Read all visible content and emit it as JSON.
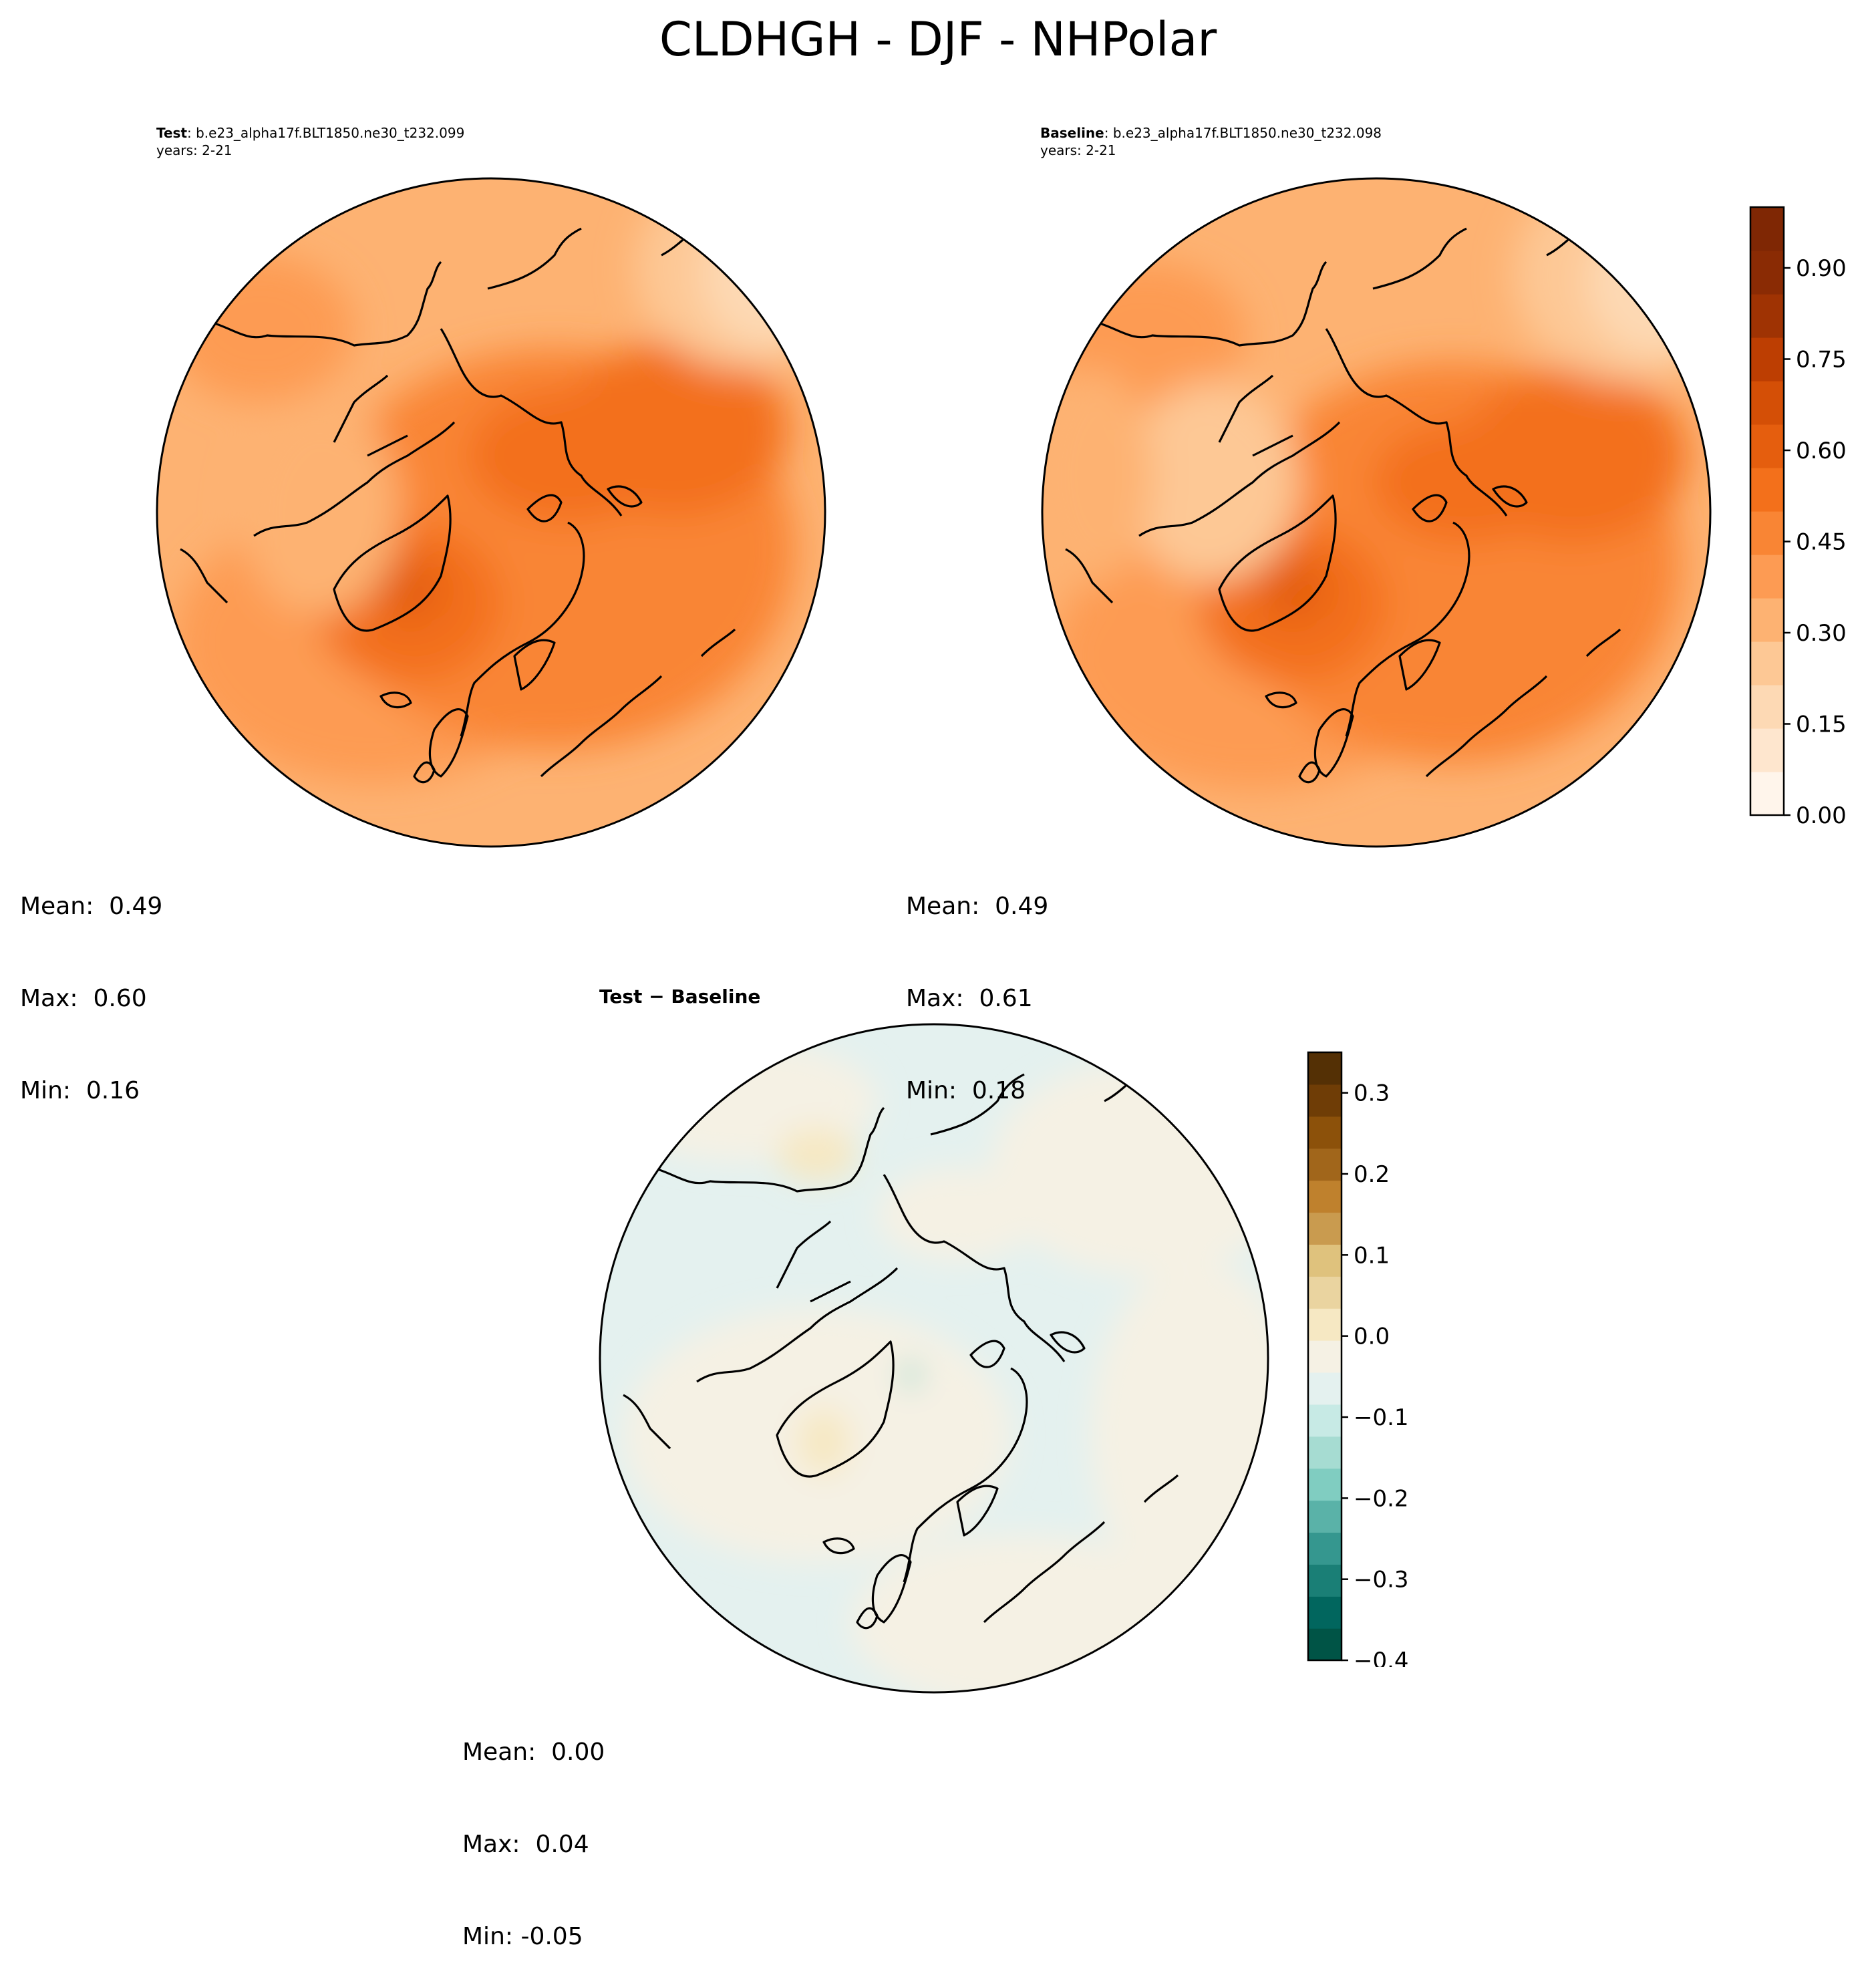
{
  "figure": {
    "title": "CLDHGH - DJF - NHPolar"
  },
  "panels": [
    {
      "id": "test",
      "label": "Test",
      "case": ": b.e23_alpha17f.BLT1850.ne30_t232.099",
      "years": "years: 2-21",
      "stats": {
        "mean": "Mean:  0.49",
        "max": "Max:  0.60",
        "min": "Min:  0.16"
      }
    },
    {
      "id": "baseline",
      "label": "Baseline",
      "case": ": b.e23_alpha17f.BLT1850.ne30_t232.098",
      "years": "years: 2-21",
      "stats": {
        "mean": "Mean:  0.49",
        "max": "Max:  0.61",
        "min": "Min:  0.18"
      }
    },
    {
      "id": "difference",
      "label": "Test − Baseline",
      "stats": {
        "mean": "Mean:  0.00",
        "max": "Max:  0.04",
        "min": "Min: -0.05"
      }
    }
  ],
  "colorbars": {
    "main": {
      "ticks": [
        "0.00",
        "0.15",
        "0.30",
        "0.45",
        "0.60",
        "0.75",
        "0.90"
      ],
      "range": [
        0.0,
        1.0
      ],
      "colors": [
        "#fff5eb",
        "#fee6ce",
        "#fdd9b4",
        "#fdc895",
        "#fdb272",
        "#fd9b53",
        "#f98534",
        "#f3701b",
        "#e55e0e",
        "#d44f06",
        "#bd3e02",
        "#9f3303",
        "#8a2b04",
        "#7f2704"
      ]
    },
    "diff": {
      "ticks": [
        "0.3",
        "0.2",
        "0.1",
        "0.0",
        "−0.1",
        "−0.2",
        "−0.3",
        "−0.4"
      ],
      "range": [
        -0.4,
        0.35
      ],
      "colors": [
        "#005446",
        "#01665e",
        "#1a7f76",
        "#35978f",
        "#5ab2a8",
        "#80cdc1",
        "#a6dcd2",
        "#c7eae5",
        "#e4f1ef",
        "#f5f1e4",
        "#f6e8c3",
        "#ead4a0",
        "#dfc27d",
        "#c99b4f",
        "#bf812d",
        "#a1661b",
        "#8c510a",
        "#6f3d06",
        "#543005"
      ]
    }
  },
  "map_fill": {
    "test": [
      "#fdb272",
      "#fd9b53",
      "#f98534",
      "#f3701b",
      "#e55e0e"
    ],
    "baseline": [
      "#fdc895",
      "#fdb272",
      "#fd9b53",
      "#f98534",
      "#f3701b",
      "#e55e0e"
    ],
    "difference": [
      "#e4f1ef",
      "#f5f1e4",
      "#f6e8c3",
      "#a6dcd2"
    ]
  }
}
